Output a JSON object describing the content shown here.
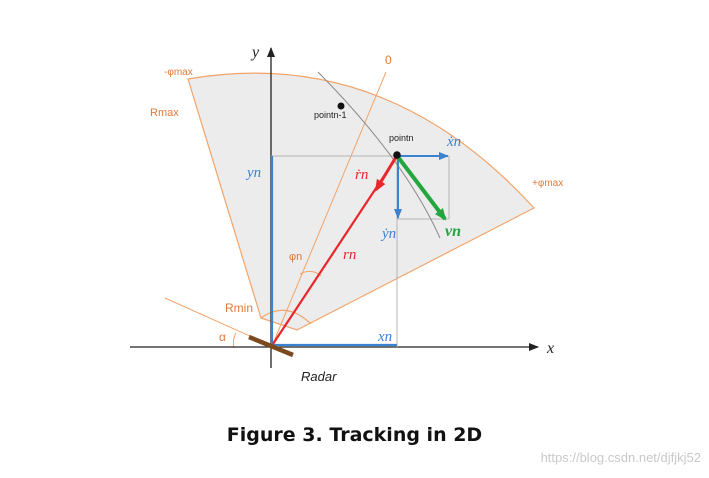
{
  "labels": {
    "y_axis": "y",
    "x_axis": "x",
    "zero_angle": "0",
    "neg_phi_max": "-φmax",
    "pos_phi_max": "+φmax",
    "r_max": "Rmax",
    "r_min": "Rmin",
    "point_prev": "pointn-1",
    "point_n": "pointn",
    "y_n": "yn",
    "x_n": "xn",
    "x_dot_n": "ẋn",
    "y_dot_n": "ẏn",
    "r_dot_n": "ṙn",
    "r_n": "rn",
    "v_n": "vn",
    "phi_n": "φn",
    "alpha": "α",
    "radar": "Radar"
  },
  "caption": "Figure 3. Tracking in 2D",
  "watermark": "https://blog.csdn.net/djfjkj52",
  "colors": {
    "sector_fill": "#ececec",
    "sector_edge": "#f2a46a",
    "orange_text": "#e07a3a",
    "blue": "#3b82d0",
    "red": "#e8262b",
    "green": "#23a53f",
    "radar": "#7a4a1e"
  }
}
